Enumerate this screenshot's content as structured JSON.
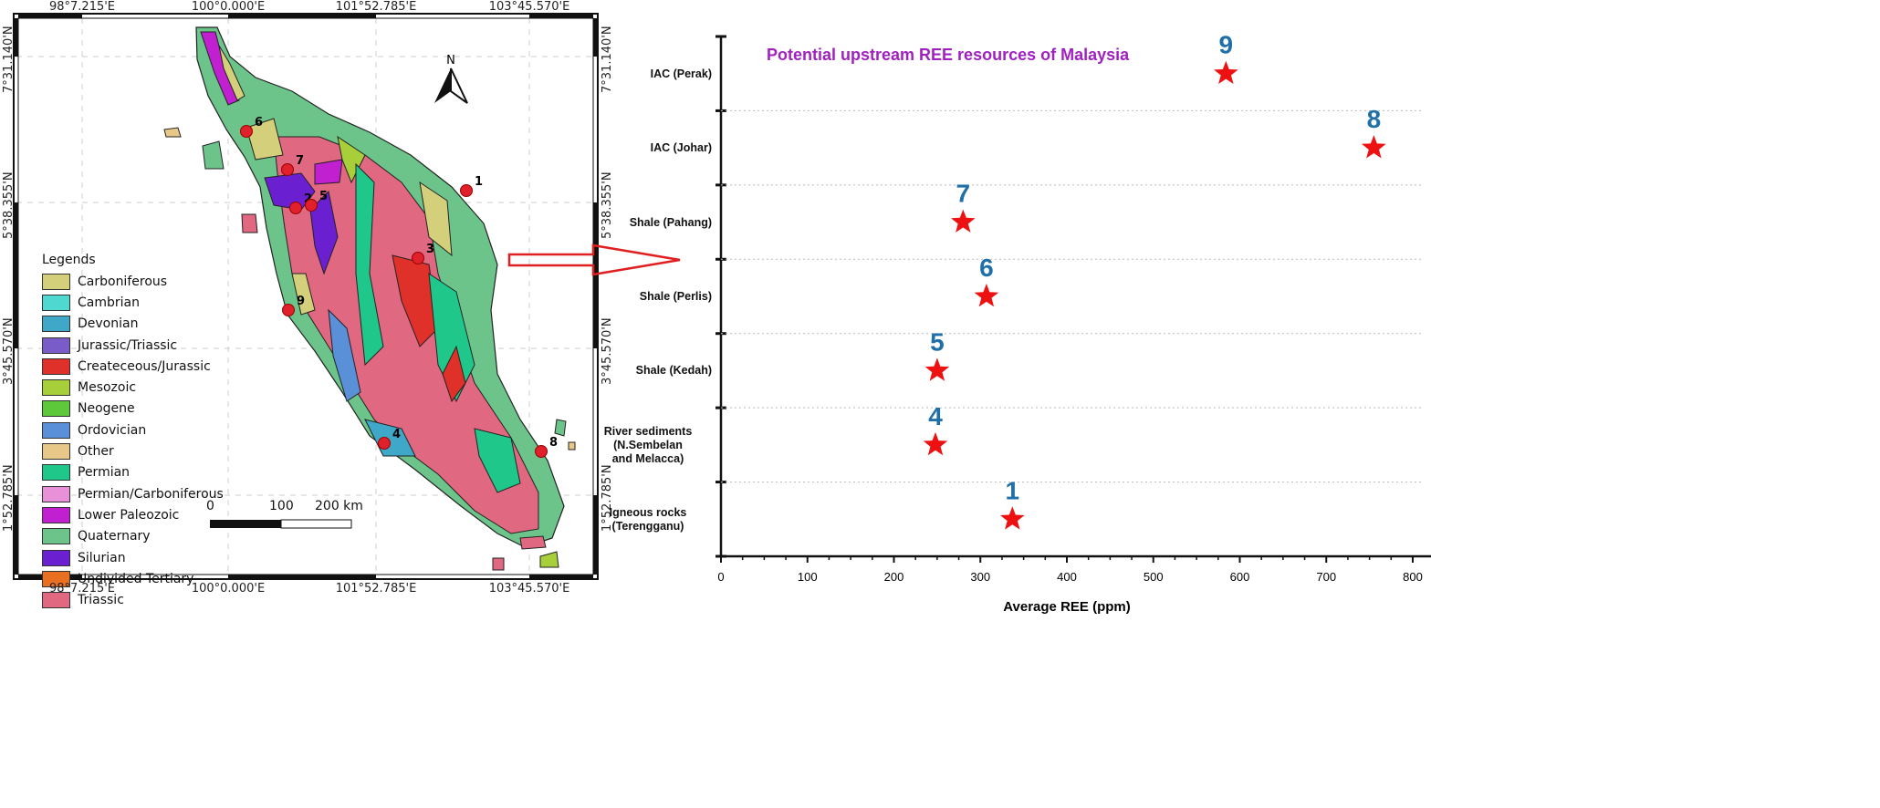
{
  "map": {
    "lon_labels": [
      "98°7.215'E",
      "100°0.000'E",
      "101°52.785'E",
      "103°45.570'E"
    ],
    "lat_labels": [
      "7°31.140'N",
      "5°38.355'N",
      "3°45.570'N",
      "1°52.785'N"
    ],
    "north_label": "N",
    "legend_title": "Legends",
    "legend": [
      {
        "label": "Carboniferous",
        "color": "#d4cf7a"
      },
      {
        "label": "Cambrian",
        "color": "#4fd8d0"
      },
      {
        "label": "Devonian",
        "color": "#3fa8c8"
      },
      {
        "label": "Jurassic/Triassic",
        "color": "#7a5cc8"
      },
      {
        "label": "Createceous/Jurassic",
        "color": "#e0302a"
      },
      {
        "label": "Mesozoic",
        "color": "#a6cf3a"
      },
      {
        "label": "Neogene",
        "color": "#5cc83a"
      },
      {
        "label": "Ordovician",
        "color": "#5a90d8"
      },
      {
        "label": "Other",
        "color": "#e8c888"
      },
      {
        "label": "Permian",
        "color": "#1fc88a"
      },
      {
        "label": "Permian/Carboniferous",
        "color": "#e890d8"
      },
      {
        "label": "Lower Paleozoic",
        "color": "#c020d0"
      },
      {
        "label": "Quaternary",
        "color": "#6cc48a"
      },
      {
        "label": "Silurian",
        "color": "#6a20d0"
      },
      {
        "label": "Undivided Tertiary",
        "color": "#e87020"
      },
      {
        "label": "Triassic",
        "color": "#e06880"
      }
    ],
    "scale_labels": [
      "0",
      "100",
      "200 km"
    ],
    "sites": [
      "1",
      "2",
      "3",
      "4",
      "5",
      "6",
      "7",
      "8",
      "9"
    ]
  },
  "chart_data": {
    "type": "scatter",
    "title": "Potential upstream REE resources of Malaysia",
    "xlabel": "Average REE (ppm)",
    "ylabel": "",
    "xlim": [
      0,
      800
    ],
    "xticks": [
      "0",
      "100",
      "200",
      "300",
      "400",
      "500",
      "600",
      "700",
      "800"
    ],
    "categories": [
      "IAC (Perak)",
      "IAC (Johar)",
      "Shale (Pahang)",
      "Shale (Perlis)",
      "Shale (Kedah)",
      "River sediments (N.Sembelan and Melacca)",
      "Igneous rocks (Terengganu)"
    ],
    "points": [
      {
        "category": "IAC (Perak)",
        "value": 584,
        "label": "9"
      },
      {
        "category": "IAC (Johar)",
        "value": 755,
        "label": "8"
      },
      {
        "category": "Shale (Pahang)",
        "value": 280,
        "label": "7"
      },
      {
        "category": "Shale (Perlis)",
        "value": 307,
        "label": "6"
      },
      {
        "category": "Shale (Kedah)",
        "value": 250,
        "label": "5"
      },
      {
        "category": "River sediments (N.Sembelan and Melacca)",
        "value": 248,
        "label": "4"
      },
      {
        "category": "Igneous rocks (Terengganu)",
        "value": 337,
        "label": "1"
      }
    ],
    "marker_color": "#ee1111",
    "label_color": "#1f6fa8",
    "title_color": "#a020c0",
    "grid": "horizontal dotted"
  }
}
